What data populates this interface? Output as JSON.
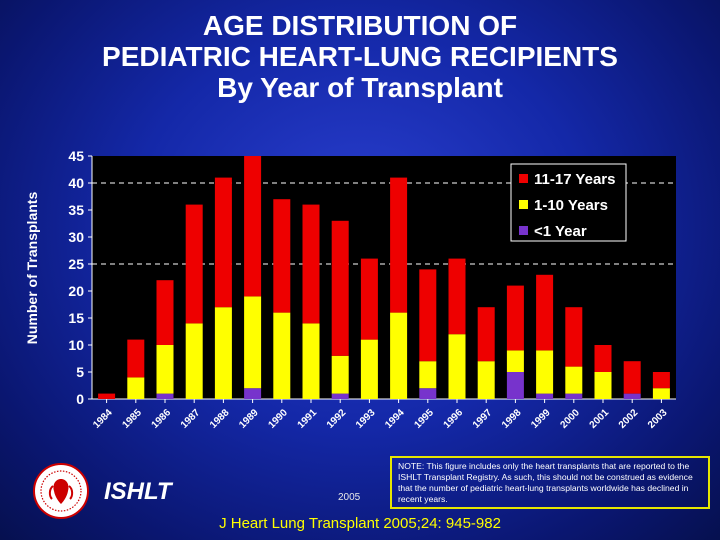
{
  "title_lines": [
    "AGE DISTRIBUTION OF",
    "PEDIATRIC HEART-LUNG RECIPIENTS",
    "By Year of Transplant"
  ],
  "chart_data": {
    "type": "bar",
    "stacked": true,
    "ylabel": "Number of Transplants",
    "xlabel": "",
    "ylim": [
      0,
      45
    ],
    "yticks": [
      0,
      5,
      10,
      15,
      20,
      25,
      30,
      35,
      40,
      45
    ],
    "dashed_gridlines": [
      25,
      40
    ],
    "legend_position": "top-right",
    "categories": [
      "1984",
      "1985",
      "1986",
      "1987",
      "1988",
      "1989",
      "1990",
      "1991",
      "1992",
      "1993",
      "1994",
      "1995",
      "1996",
      "1997",
      "1998",
      "1999",
      "2000",
      "2001",
      "2002",
      "2003"
    ],
    "series": [
      {
        "name": "<1 Year",
        "color": "#7733cc",
        "values": [
          0,
          0,
          1,
          0,
          0,
          2,
          0,
          0,
          1,
          0,
          0,
          2,
          0,
          0,
          5,
          1,
          1,
          0,
          1,
          0
        ]
      },
      {
        "name": "1-10 Years",
        "color": "#ffff00",
        "values": [
          0,
          4,
          9,
          14,
          17,
          17,
          16,
          14,
          7,
          11,
          16,
          5,
          12,
          7,
          4,
          8,
          5,
          5,
          0,
          2
        ]
      },
      {
        "name": "11-17 Years",
        "color": "#ee0000",
        "values": [
          1,
          7,
          12,
          22,
          24,
          26,
          21,
          22,
          25,
          15,
          25,
          17,
          14,
          10,
          12,
          14,
          11,
          5,
          6,
          3
        ]
      }
    ]
  },
  "footer": {
    "org": "ISHLT",
    "year": "2005",
    "note": "NOTE: This figure includes only the heart transplants that are reported to the ISHLT Transplant Registry.  As such, this should not be construed as evidence that the number of pediatric heart-lung transplants worldwide has declined in recent years.",
    "citation": "J Heart Lung Transplant 2005;24: 945-982"
  },
  "colors": {
    "background": "#1428a8",
    "plot_area": "#000000",
    "text": "#ffffff",
    "note_border": "#e6e600",
    "citation": "#ffff00"
  }
}
